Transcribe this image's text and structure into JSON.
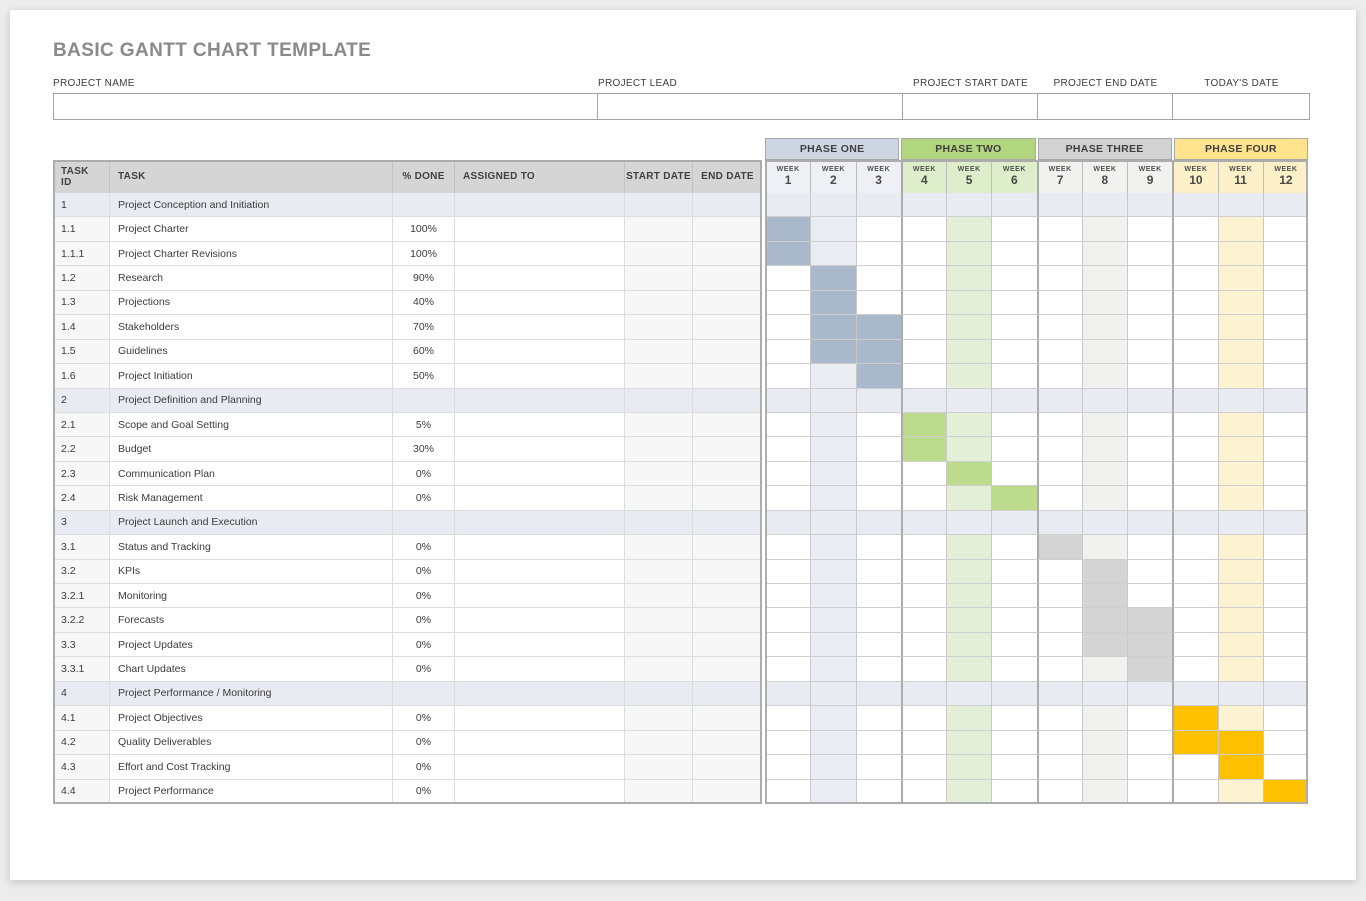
{
  "page": {
    "title": "BASIC GANTT CHART TEMPLATE"
  },
  "fields": [
    {
      "label": "PROJECT NAME",
      "value": ""
    },
    {
      "label": "PROJECT LEAD",
      "value": ""
    },
    {
      "label": "PROJECT START DATE",
      "value": ""
    },
    {
      "label": "PROJECT END DATE",
      "value": ""
    },
    {
      "label": "TODAY'S DATE",
      "value": ""
    }
  ],
  "table": {
    "columns": [
      "TASK ID",
      "TASK",
      "% DONE",
      "ASSIGNED TO",
      "START DATE",
      "END DATE"
    ],
    "week_label": "WEEK",
    "weeks": [
      1,
      2,
      3,
      4,
      5,
      6,
      7,
      8,
      9,
      10,
      11,
      12
    ],
    "stripe_weeks": [
      2,
      5,
      8,
      11
    ],
    "phases": [
      {
        "label": "PHASE ONE",
        "header_color": "#cdd6e2",
        "week_header_color": "#eef0f5",
        "bar_color": "#a9b8ca",
        "stripe_color": "#e9edf3"
      },
      {
        "label": "PHASE TWO",
        "header_color": "#b2d67f",
        "week_header_color": "#deedca",
        "bar_color": "#bcdb8d",
        "stripe_color": "#e3efd6"
      },
      {
        "label": "PHASE THREE",
        "header_color": "#d2d2d2",
        "week_header_color": "#f1f1f0",
        "bar_color": "#d4d4d4",
        "stripe_color": "#f1f1ef"
      },
      {
        "label": "PHASE FOUR",
        "header_color": "#ffe38c",
        "week_header_color": "#fcf0c8",
        "bar_color": "#ffc000",
        "stripe_color": "#fdf2d2"
      }
    ],
    "rows": [
      {
        "id": "1",
        "task": "Project Conception and Initiation",
        "done": "",
        "section": true,
        "bars": []
      },
      {
        "id": "1.1",
        "task": "Project Charter",
        "done": "100%",
        "section": false,
        "bars": [
          1
        ]
      },
      {
        "id": "1.1.1",
        "task": "Project Charter Revisions",
        "done": "100%",
        "section": false,
        "bars": [
          1
        ]
      },
      {
        "id": "1.2",
        "task": "Research",
        "done": "90%",
        "section": false,
        "bars": [
          2
        ]
      },
      {
        "id": "1.3",
        "task": "Projections",
        "done": "40%",
        "section": false,
        "bars": [
          2
        ]
      },
      {
        "id": "1.4",
        "task": "Stakeholders",
        "done": "70%",
        "section": false,
        "bars": [
          2,
          3
        ]
      },
      {
        "id": "1.5",
        "task": "Guidelines",
        "done": "60%",
        "section": false,
        "bars": [
          2,
          3
        ]
      },
      {
        "id": "1.6",
        "task": "Project Initiation",
        "done": "50%",
        "section": false,
        "bars": [
          3
        ]
      },
      {
        "id": "2",
        "task": "Project Definition and Planning",
        "done": "",
        "section": true,
        "bars": []
      },
      {
        "id": "2.1",
        "task": "Scope and Goal Setting",
        "done": "5%",
        "section": false,
        "bars": [
          4
        ]
      },
      {
        "id": "2.2",
        "task": "Budget",
        "done": "30%",
        "section": false,
        "bars": [
          4
        ]
      },
      {
        "id": "2.3",
        "task": "Communication Plan",
        "done": "0%",
        "section": false,
        "bars": [
          5
        ]
      },
      {
        "id": "2.4",
        "task": "Risk Management",
        "done": "0%",
        "section": false,
        "bars": [
          6
        ]
      },
      {
        "id": "3",
        "task": "Project Launch and Execution",
        "done": "",
        "section": true,
        "bars": []
      },
      {
        "id": "3.1",
        "task": "Status and Tracking",
        "done": "0%",
        "section": false,
        "bars": [
          7
        ]
      },
      {
        "id": "3.2",
        "task": "KPIs",
        "done": "0%",
        "section": false,
        "bars": [
          8
        ]
      },
      {
        "id": "3.2.1",
        "task": "Monitoring",
        "done": "0%",
        "section": false,
        "bars": [
          8
        ]
      },
      {
        "id": "3.2.2",
        "task": "Forecasts",
        "done": "0%",
        "section": false,
        "bars": [
          8,
          9
        ]
      },
      {
        "id": "3.3",
        "task": "Project Updates",
        "done": "0%",
        "section": false,
        "bars": [
          8,
          9
        ]
      },
      {
        "id": "3.3.1",
        "task": "Chart Updates",
        "done": "0%",
        "section": false,
        "bars": [
          9
        ]
      },
      {
        "id": "4",
        "task": "Project Performance / Monitoring",
        "done": "",
        "section": true,
        "bars": []
      },
      {
        "id": "4.1",
        "task": "Project Objectives",
        "done": "0%",
        "section": false,
        "bars": [
          10
        ]
      },
      {
        "id": "4.2",
        "task": "Quality Deliverables",
        "done": "0%",
        "section": false,
        "bars": [
          10,
          11
        ]
      },
      {
        "id": "4.3",
        "task": "Effort and Cost Tracking",
        "done": "0%",
        "section": false,
        "bars": [
          11
        ]
      },
      {
        "id": "4.4",
        "task": "Project Performance",
        "done": "0%",
        "section": false,
        "bars": [
          12
        ]
      }
    ]
  }
}
